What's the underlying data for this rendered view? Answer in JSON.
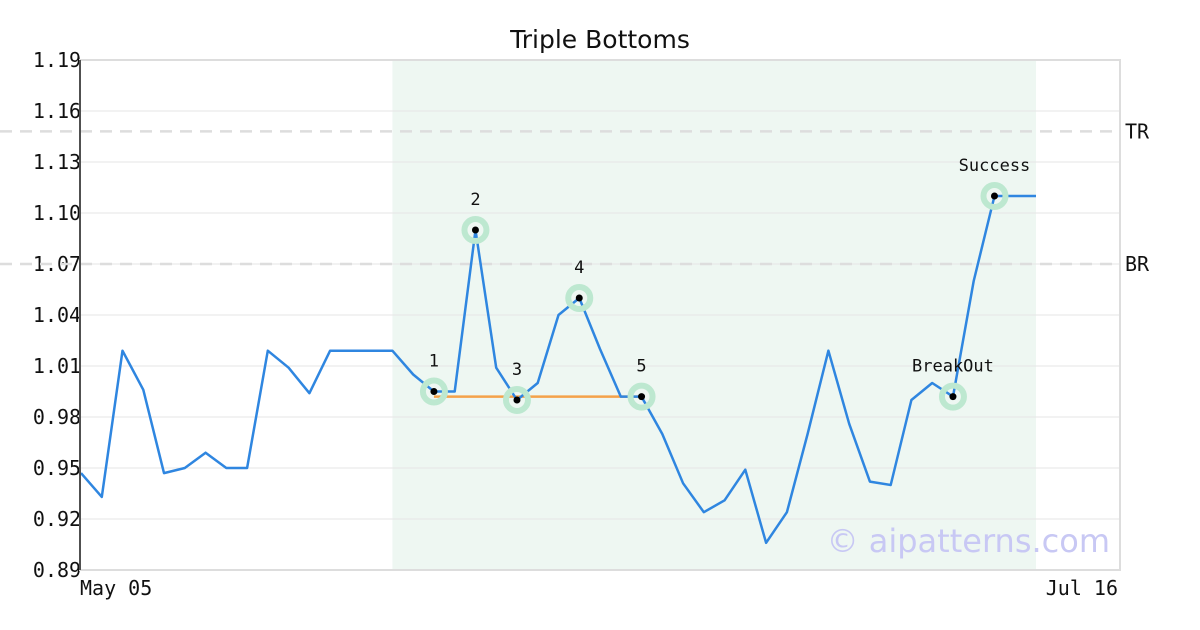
{
  "chart_data": {
    "type": "line",
    "title": "Triple Bottoms",
    "ylim": [
      0.89,
      1.19
    ],
    "yticks": [
      "0.89",
      "0.92",
      "0.95",
      "0.98",
      "1.01",
      "1.04",
      "1.07",
      "1.10",
      "1.13",
      "1.16",
      "1.19"
    ],
    "xtick_labels": {
      "start": "May 05",
      "end": "Jul 16"
    },
    "grid": true,
    "colors": {
      "series": "#2f86e0",
      "support": "#f4a24a",
      "highlight_fill": "#eef7f2",
      "marker_ring": "#bde8d0",
      "level_line": "#dddddd"
    },
    "series": [
      {
        "values": [
          0.947,
          0.933,
          1.019,
          0.996,
          0.947,
          0.95,
          0.959,
          0.95,
          0.95,
          1.019,
          1.009,
          0.994,
          1.019,
          1.019,
          1.019,
          1.019,
          1.005,
          0.995,
          0.995,
          1.09,
          1.009,
          0.99,
          1.0,
          1.04,
          1.05,
          1.02,
          0.992,
          0.992,
          0.97,
          0.941,
          0.924,
          0.931,
          0.949,
          0.906,
          0.924,
          0.97,
          1.019,
          0.976,
          0.942,
          0.94,
          0.99,
          1.0,
          0.992,
          1.06,
          1.11,
          1.11,
          1.11
        ]
      }
    ],
    "highlight_range": [
      15,
      46
    ],
    "support_line": {
      "x_start": 17,
      "x_end": 27,
      "value": 0.992
    },
    "levels": [
      {
        "label": "TR",
        "value": 1.148
      },
      {
        "label": "BR",
        "value": 1.07
      }
    ],
    "points": [
      {
        "label": "1",
        "x": 17,
        "y": 0.995
      },
      {
        "label": "2",
        "x": 19,
        "y": 1.09
      },
      {
        "label": "3",
        "x": 21,
        "y": 0.99
      },
      {
        "label": "4",
        "x": 24,
        "y": 1.05
      },
      {
        "label": "5",
        "x": 27,
        "y": 0.992
      },
      {
        "label": "BreakOut",
        "x": 42,
        "y": 0.992
      },
      {
        "label": "Success",
        "x": 44,
        "y": 1.11
      }
    ],
    "watermark": "© aipatterns.com"
  }
}
